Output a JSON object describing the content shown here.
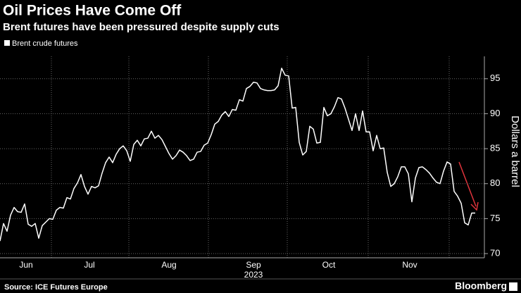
{
  "chart_data": {
    "type": "line",
    "title": "Oil Prices Have Come Off",
    "subtitle": "Brent futures have been pressured despite supply cuts",
    "series": [
      {
        "name": "Brent crude futures",
        "color": "#ffffff",
        "values": [
          71.8,
          74.3,
          73.2,
          75.5,
          76.6,
          76.0,
          75.9,
          77.1,
          74.2,
          73.9,
          74.3,
          72.2,
          74.0,
          74.5,
          75.0,
          74.9,
          76.2,
          76.6,
          76.5,
          78.0,
          77.8,
          79.3,
          80.1,
          81.3,
          79.6,
          78.5,
          79.6,
          79.4,
          79.7,
          81.5,
          83.0,
          83.8,
          83.0,
          84.2,
          85.0,
          85.4,
          84.7,
          83.2,
          85.6,
          86.2,
          85.4,
          86.4,
          86.5,
          87.5,
          86.5,
          86.9,
          86.3,
          85.3,
          84.3,
          83.5,
          84.0,
          84.8,
          84.5,
          84.0,
          83.3,
          83.5,
          84.5,
          84.6,
          85.5,
          85.8,
          87.0,
          88.5,
          88.9,
          89.8,
          90.3,
          89.6,
          90.6,
          90.5,
          92.0,
          91.8,
          93.6,
          93.9,
          94.5,
          94.4,
          93.6,
          93.4,
          93.3,
          93.3,
          93.4,
          94.0,
          96.5,
          95.5,
          95.4,
          90.8,
          90.9,
          85.9,
          84.1,
          84.6,
          88.2,
          87.8,
          85.8,
          85.9,
          90.9,
          89.7,
          90.0,
          91.0,
          92.3,
          92.1,
          90.8,
          89.2,
          87.6,
          90.0,
          87.6,
          90.4,
          87.4,
          87.4,
          84.7,
          86.9,
          85.0,
          85.1,
          81.6,
          79.6,
          80.0,
          81.0,
          82.4,
          82.4,
          81.4,
          77.4,
          80.8,
          82.3,
          82.4,
          82.0,
          81.5,
          80.8,
          80.2,
          80.0,
          81.8,
          83.1,
          82.8,
          78.9,
          78.2,
          77.2,
          74.4,
          74.1,
          75.8,
          75.8
        ]
      }
    ],
    "x_labels": [
      "Jun",
      "Jul",
      "Aug",
      "Sep",
      "Oct",
      "Nov"
    ],
    "x_label_year": "2023",
    "y_label": "Dollars a barrel",
    "ylim": [
      69.4,
      98.2
    ],
    "yticks": [
      70,
      75,
      80,
      85,
      90,
      95
    ],
    "grid": true,
    "source": "Source: ICE Futures Europe",
    "brand": "Bloomberg"
  }
}
